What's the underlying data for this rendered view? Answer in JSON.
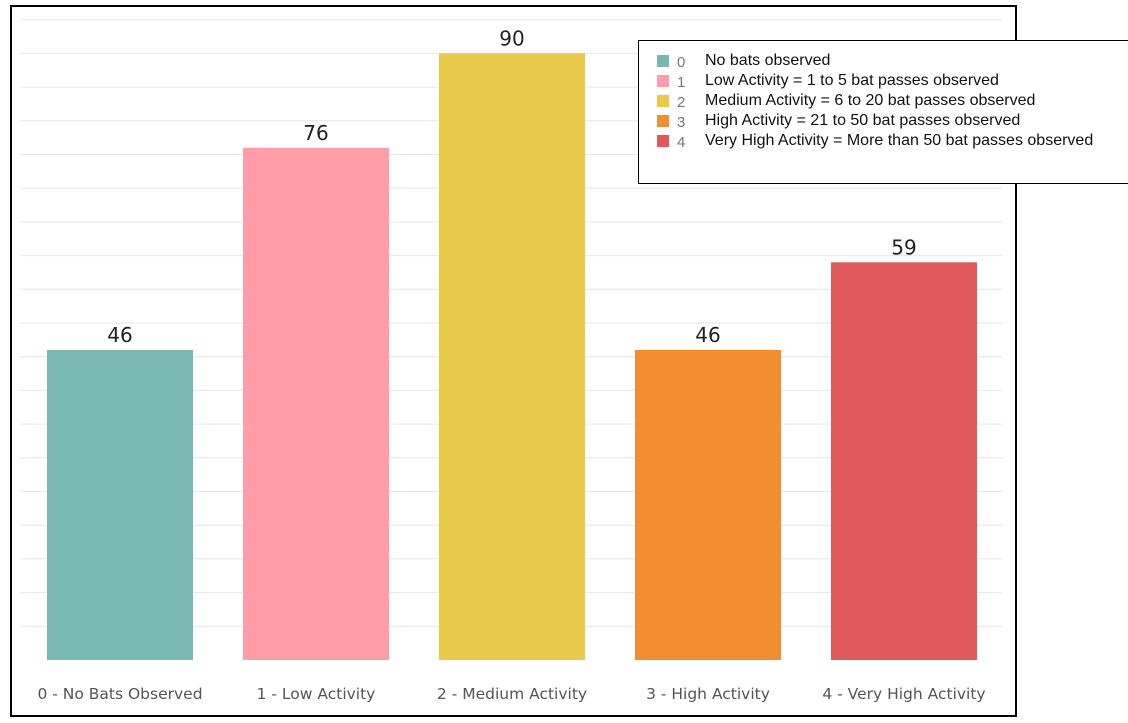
{
  "chart_data": {
    "type": "bar",
    "categories": [
      "0 - No Bats Observed",
      "1 - Low Activity",
      "2 - Medium Activity",
      "3 - High Activity",
      "4 - Very High Activity"
    ],
    "values": [
      46,
      76,
      90,
      46,
      59
    ],
    "colors": [
      "#79b8b2",
      "#fe9da7",
      "#eac84a",
      "#f28e31",
      "#e0585b"
    ],
    "ylim": [
      0,
      100
    ],
    "grid": true,
    "legend_position": "top-right",
    "legend": [
      {
        "code": "0",
        "text": "No bats observed",
        "color": "#79b8b2"
      },
      {
        "code": "1",
        "text": "Low Activity = 1 to 5 bat passes observed",
        "color": "#fe9da7"
      },
      {
        "code": "2",
        "text": "Medium Activity = 6 to 20 bat passes observed",
        "color": "#eac84a"
      },
      {
        "code": "3",
        "text": "High Activity = 21 to 50 bat passes observed",
        "color": "#f28e31"
      },
      {
        "code": "4",
        "text": "Very High Activity = More than 50 bat passes observed",
        "color": "#e0585b"
      }
    ]
  }
}
